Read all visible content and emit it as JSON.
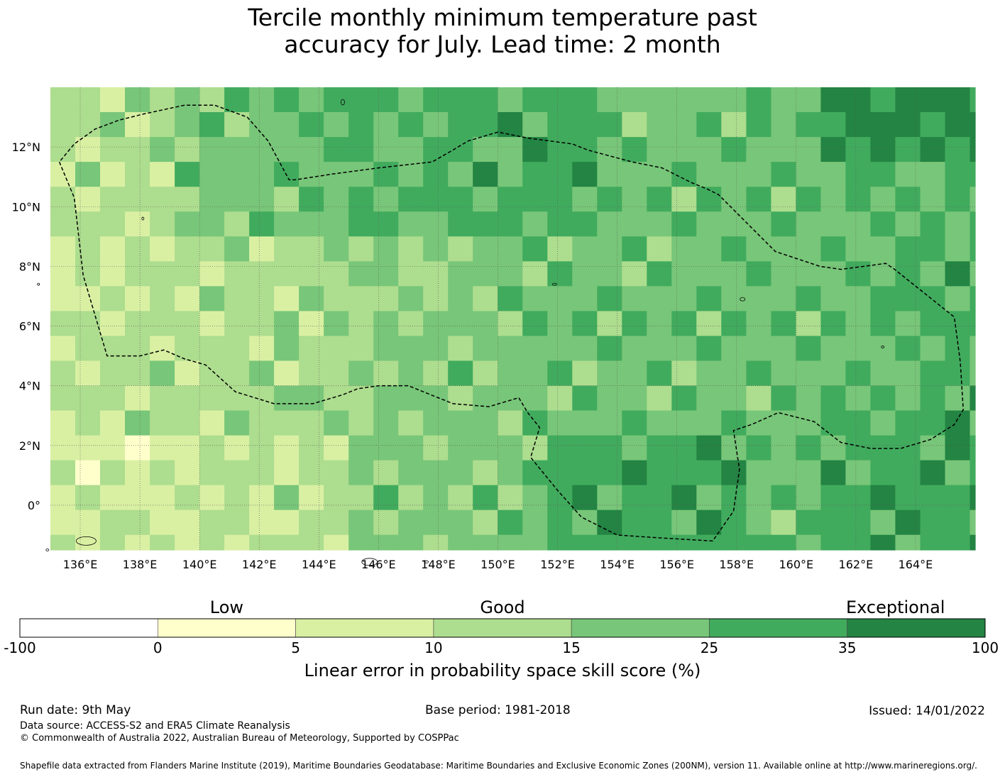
{
  "title": {
    "line1": "Tercile monthly minimum temperature past",
    "line2": "accuracy for July. Lead time: 2 month"
  },
  "map": {
    "lon_labels": [
      "136°E",
      "138°E",
      "140°E",
      "142°E",
      "144°E",
      "146°E",
      "148°E",
      "150°E",
      "152°E",
      "154°E",
      "156°E",
      "158°E",
      "160°E",
      "162°E",
      "164°E"
    ],
    "lat_labels": [
      "12°N",
      "10°N",
      "8°N",
      "6°N",
      "4°N",
      "2°N",
      "0°"
    ],
    "lon_range": [
      135,
      166
    ],
    "lat_range": [
      -1.5,
      14
    ],
    "grid_resolution_deg": 0.83,
    "boundary": "dashed EEZ outline",
    "grid_lines": "dotted",
    "skill_field_pattern": [
      "NNGGGMGGMGGGMMGGGGGGGGGGGGGGDDDGGGGGGG",
      "NNGGGMGGMGGGGGGGGGGGGGGGGGGGDDDGGGGGGG",
      "NMGGGMGGMGGGGGGGGGGGGGGGGGGGDDDGGGGGGG",
      "NMGGGMGGMGGGGGGGGGGGGGGGGGGGGGGGGGGGGG",
      "NMGGGMGGMGGGGGGGGGGGGGGGGGGGGGGGGGGGGG",
      "NMGGGMGGMGGGGGGGGGGGGGGGGGGGGGGGGGGGGG",
      "NMGGGMGGMGGGGGGGGGGGGGGGGGGGGGGGGGGGGG",
      "NMGGGMGGMGGGGGGGGGGGGGGGGGGGGGGGGGGGGG",
      "NMGGGMGGMGGGGGGGGGGGGGGGGGGGGGGGGGGGGG",
      "NMGGGMGGMGGGGGGGGGGGGGGGGGGGGGGGGGGGGG",
      "NMGGGMGGMGGGGGGGGGGGGGGGGGGGGGGGGGGGGG",
      "NMGGGMGGMGGGGGGGGGGGGGGGGGGGGGGGGGGGGG",
      "NMGGGMGGMGGGGGGGGGGGGGGGGGGGGGGGGGGGGG",
      "NMGGGMGGMGGGGGGGGGGGGGGGGGGGGGGGGGGGGG",
      "NMGGGMGGMGGGGGGGGGGGGGGGGGGGGGGGGGGGGG",
      "NMGGGMGGMGGGGGGGGGGGGGGGGGGGGGGGGGGGGG",
      "NMGGGMGGMGGGGGGGGGGGGGGGGGGGGGGGGGGGGG",
      "NMGGGMGGMGGGGGGGGGGGGGGGGGGGGGGGGGGGGG",
      "NMGGGMGGMGGGGGGGGGGGGGGGGGGGGGGGGGGGGG"
    ]
  },
  "colorbar": {
    "categories": [
      {
        "label": "Low",
        "at": 1.5
      },
      {
        "label": "Good",
        "at": 3.5
      },
      {
        "label": "Exceptional",
        "at": 6.35
      }
    ],
    "ticks": [
      "-100",
      "0",
      "5",
      "10",
      "15",
      "25",
      "35",
      "100"
    ],
    "colors": [
      "#ffffff",
      "#ffffcc",
      "#d9f0a3",
      "#addd8e",
      "#78c679",
      "#41ab5d",
      "#238443"
    ],
    "title": "Linear error in probability space skill score (%)"
  },
  "footer": {
    "run_date": "Run date: 9th May",
    "base_period": "Base period: 1981-2018",
    "issued": "Issued: 14/01/2022",
    "data_source": "Data source: ACCESS-S2 and ERA5 Climate Reanalysis",
    "copyright": "© Commonwealth of Australia 2022, Australian Bureau of Meteorology, Supported by COSPPac",
    "shapefile": "Shapefile data extracted from Flanders Marine Institute (2019), Maritime Boundaries Geodatabase: Maritime Boundaries and Exclusive Economic Zones (200NM), version 11. Available online at http://www.marineregions.org/."
  }
}
